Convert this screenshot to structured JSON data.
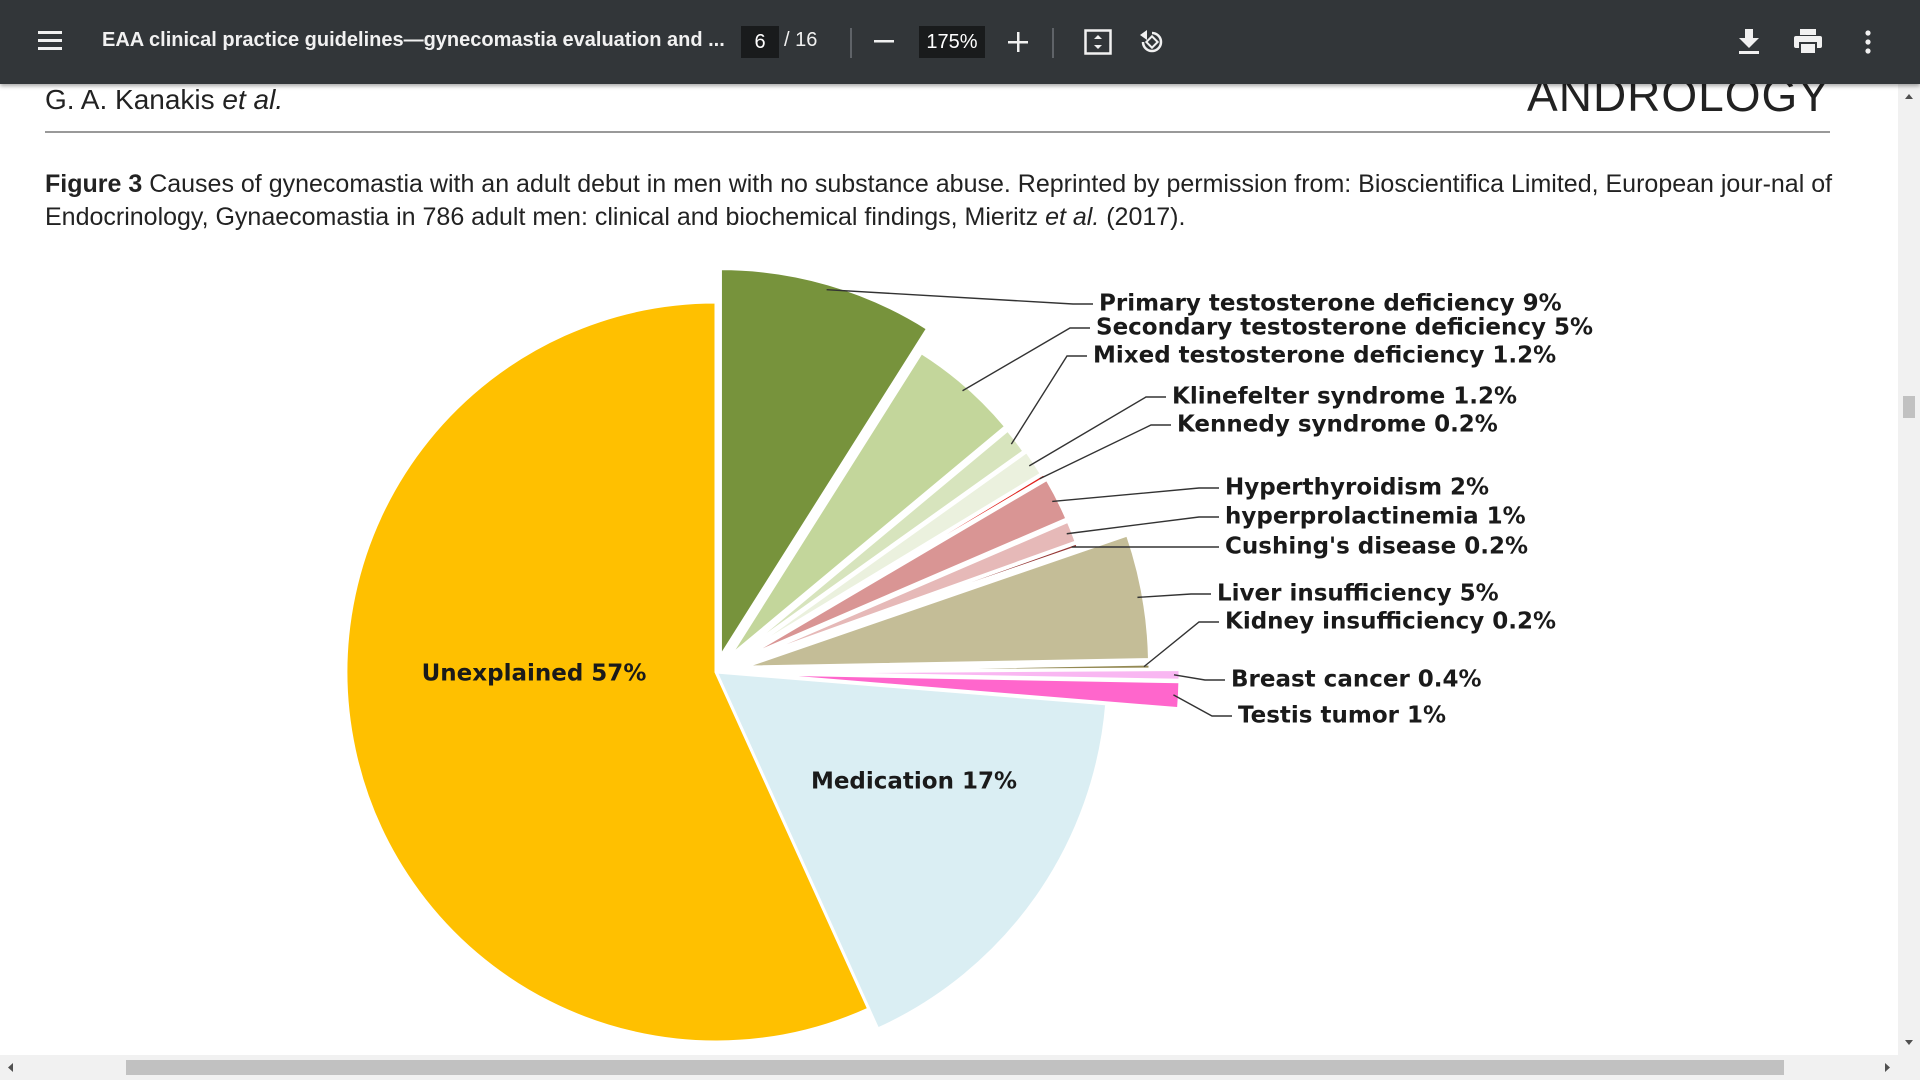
{
  "toolbar": {
    "document_title": "EAA clinical practice guidelines—gynecomastia evaluation and ...",
    "page_current": "6",
    "page_total": "/ 16",
    "zoom": "175%",
    "icons": [
      "menu-icon",
      "zoom-out-icon",
      "zoom-in-icon",
      "fit-page-icon",
      "rotate-icon",
      "download-icon",
      "print-icon",
      "more-icon"
    ]
  },
  "page": {
    "header_left_prefix": "G. A. Kanakis ",
    "header_left_italic": "et al.",
    "header_right": "ANDROLOGY",
    "caption_label": "Figure 3",
    "caption_text_1": " Causes of gynecomastia with an adult debut in men with no substance abuse. Reprinted by permission from: Bioscientifica Limited, European jour-nal of Endocrinology, Gynaecomastia in 786 adult men: clinical and biochemical findings, Mieritz ",
    "caption_italic": "et al.",
    "caption_text_2": " (2017)."
  },
  "chart_data": {
    "type": "pie",
    "title": "",
    "slices": [
      {
        "label": "Primary testosterone deficiency  9%",
        "value": 9,
        "color": "#77933c"
      },
      {
        "label": "Secondary testosterone deficiency 5%",
        "value": 5,
        "color": "#c3d69b"
      },
      {
        "label": "Mixed testosterone deficiency 1.2%",
        "value": 1.2,
        "color": "#d7e4bd"
      },
      {
        "label": "Klinefelter syndrome 1.2%",
        "value": 1.2,
        "color": "#ebf1de"
      },
      {
        "label": "Kennedy syndrome 0.2%",
        "value": 0.2,
        "color": "#e0201b"
      },
      {
        "label": "Hyperthyroidism 2%",
        "value": 2,
        "color": "#d99594"
      },
      {
        "label": "hyperprolactinemia 1%",
        "value": 1,
        "color": "#e6b9b8"
      },
      {
        "label": "Cushing's disease 0.2%",
        "value": 0.2,
        "color": "#953735"
      },
      {
        "label": "Liver insufficiency 5%",
        "value": 5,
        "color": "#c4bd97"
      },
      {
        "label": "Kidney insufficiency 0.2%",
        "value": 0.2,
        "color": "#948a54"
      },
      {
        "label": "Breast cancer 0.4%",
        "value": 0.4,
        "color": "#f9b7f2"
      },
      {
        "label": "Testis tumor 1%",
        "value": 1,
        "color": "#ff66cc"
      },
      {
        "label": "Medication 17%",
        "value": 17,
        "color": "#daeef3"
      },
      {
        "label": "Unexplained 57%",
        "value": 57,
        "color": "#ffc000"
      }
    ]
  }
}
